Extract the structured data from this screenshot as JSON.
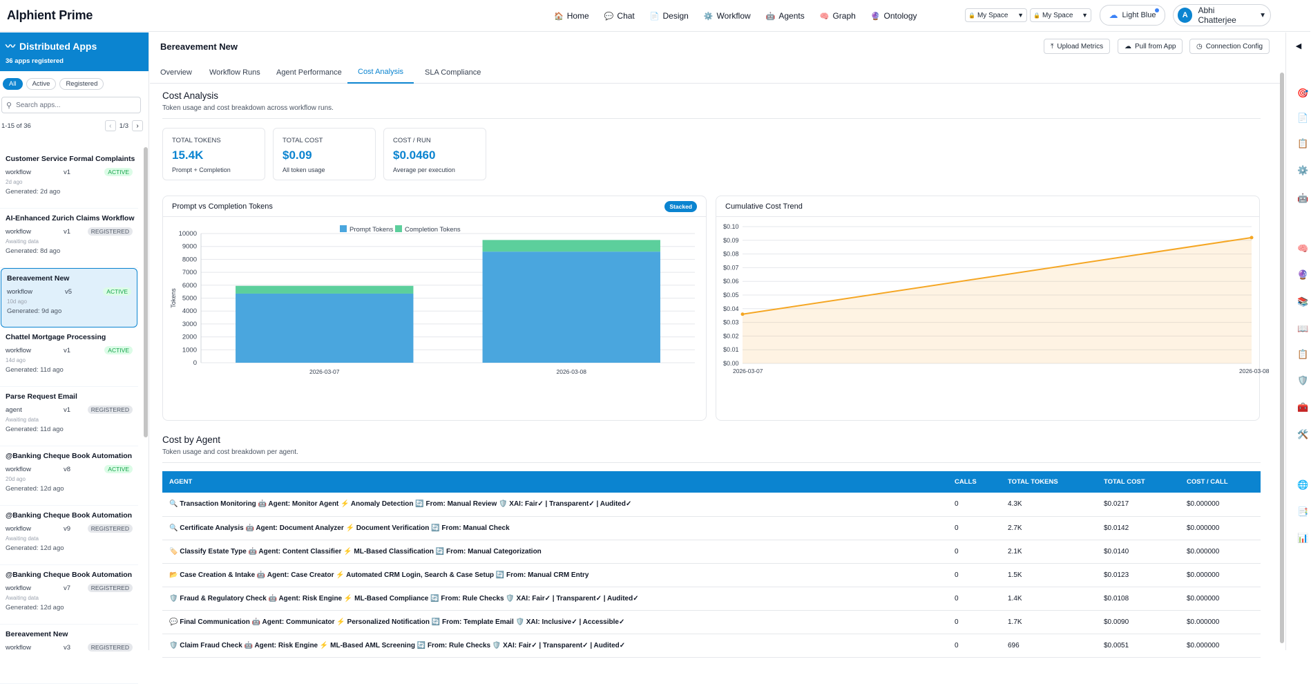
{
  "app": {
    "title": "Alphient Prime"
  },
  "nav": [
    {
      "icon": "🏠",
      "label": "Home"
    },
    {
      "icon": "💬",
      "label": "Chat"
    },
    {
      "icon": "📄",
      "label": "Design"
    },
    {
      "icon": "⚙️",
      "label": "Workflow"
    },
    {
      "icon": "🤖",
      "label": "Agents"
    },
    {
      "icon": "🧠",
      "label": "Graph"
    },
    {
      "icon": "🔮",
      "label": "Ontology"
    }
  ],
  "space_selects": [
    {
      "icon": "🔒",
      "label": "My Space"
    },
    {
      "icon": "🔒",
      "label": "My Space"
    }
  ],
  "theme": {
    "label": "Light Blue"
  },
  "user": {
    "initial": "A",
    "name": "Abhi Chatterjee"
  },
  "sidebar": {
    "title": "Distributed Apps",
    "subtitle": "36 apps registered",
    "filters": [
      "All",
      "Active",
      "Registered"
    ],
    "search_placeholder": "Search apps...",
    "range": "1-15 of 36",
    "page": "1/3",
    "apps": [
      {
        "name": "Customer Service Formal Complaints",
        "type": "workflow",
        "version": "v1",
        "status": "ACTIVE",
        "meta": "2d ago",
        "generated": "Generated: 2d ago"
      },
      {
        "name": "AI-Enhanced Zurich Claims Workflow",
        "type": "workflow",
        "version": "v1",
        "status": "REGISTERED",
        "meta": "Awaiting data",
        "generated": "Generated: 8d ago"
      },
      {
        "name": "Bereavement New",
        "type": "workflow",
        "version": "v5",
        "status": "ACTIVE",
        "meta": "10d ago",
        "generated": "Generated: 9d ago",
        "selected": true
      },
      {
        "name": "Chattel Mortgage Processing",
        "type": "workflow",
        "version": "v1",
        "status": "ACTIVE",
        "meta": "14d ago",
        "generated": "Generated: 11d ago"
      },
      {
        "name": "Parse Request Email",
        "type": "agent",
        "version": "v1",
        "status": "REGISTERED",
        "meta": "Awaiting data",
        "generated": "Generated: 11d ago"
      },
      {
        "name": "@Banking Cheque Book Automation",
        "type": "workflow",
        "version": "v8",
        "status": "ACTIVE",
        "meta": "20d ago",
        "generated": "Generated: 12d ago"
      },
      {
        "name": "@Banking Cheque Book Automation",
        "type": "workflow",
        "version": "v9",
        "status": "REGISTERED",
        "meta": "Awaiting data",
        "generated": "Generated: 12d ago"
      },
      {
        "name": "@Banking Cheque Book Automation",
        "type": "workflow",
        "version": "v7",
        "status": "REGISTERED",
        "meta": "Awaiting data",
        "generated": "Generated: 12d ago"
      },
      {
        "name": "Bereavement New",
        "type": "workflow",
        "version": "v3",
        "status": "REGISTERED",
        "meta": "",
        "generated": ""
      }
    ]
  },
  "main": {
    "title": "Bereavement New",
    "actions": [
      {
        "icon": "⤒",
        "label": "Upload Metrics"
      },
      {
        "icon": "☁",
        "label": "Pull from App"
      },
      {
        "icon": "◷",
        "label": "Connection Config"
      }
    ],
    "tabs": [
      "Overview",
      "Workflow Runs",
      "Agent Performance",
      "Cost Analysis",
      "SLA Compliance"
    ],
    "active_tab": "Cost Analysis",
    "cost_title": "Cost Analysis",
    "cost_sub": "Token usage and cost breakdown across workflow runs.",
    "cards": [
      {
        "label": "TOTAL TOKENS",
        "value": "15.4K",
        "note": "Prompt + Completion"
      },
      {
        "label": "TOTAL COST",
        "value": "$0.09",
        "note": "All token usage"
      },
      {
        "label": "COST / RUN",
        "value": "$0.0460",
        "note": "Average per execution"
      }
    ],
    "tokens_panel": {
      "title": "Prompt vs Completion Tokens",
      "badge": "Stacked"
    },
    "cost_panel": {
      "title": "Cumulative Cost Trend"
    },
    "agent_title": "Cost by Agent",
    "agent_sub": "Token usage and cost breakdown per agent.",
    "table": {
      "headers": [
        "AGENT",
        "CALLS",
        "TOTAL TOKENS",
        "TOTAL COST",
        "COST / CALL"
      ],
      "rows": [
        {
          "agent": "🔍 Transaction Monitoring 🤖 Agent: Monitor Agent ⚡ Anomaly Detection 🔄 From: Manual Review 🛡️ XAI: Fair✓ | Transparent✓ | Audited✓",
          "calls": "0",
          "tokens": "4.3K",
          "cost": "$0.0217",
          "per": "$0.000000"
        },
        {
          "agent": "🔍 Certificate Analysis 🤖 Agent: Document Analyzer ⚡ Document Verification 🔄 From: Manual Check",
          "calls": "0",
          "tokens": "2.7K",
          "cost": "$0.0142",
          "per": "$0.000000"
        },
        {
          "agent": "🏷️ Classify Estate Type 🤖 Agent: Content Classifier ⚡ ML-Based Classification 🔄 From: Manual Categorization",
          "calls": "0",
          "tokens": "2.1K",
          "cost": "$0.0140",
          "per": "$0.000000"
        },
        {
          "agent": "📂 Case Creation & Intake 🤖 Agent: Case Creator ⚡ Automated CRM Login, Search & Case Setup 🔄 From: Manual CRM Entry",
          "calls": "0",
          "tokens": "1.5K",
          "cost": "$0.0123",
          "per": "$0.000000"
        },
        {
          "agent": "🛡️ Fraud & Regulatory Check 🤖 Agent: Risk Engine ⚡ ML-Based Compliance 🔄 From: Rule Checks 🛡️ XAI: Fair✓ | Transparent✓ | Audited✓",
          "calls": "0",
          "tokens": "1.4K",
          "cost": "$0.0108",
          "per": "$0.000000"
        },
        {
          "agent": "💬 Final Communication 🤖 Agent: Communicator ⚡ Personalized Notification 🔄 From: Template Email 🛡️ XAI: Inclusive✓ | Accessible✓",
          "calls": "0",
          "tokens": "1.7K",
          "cost": "$0.0090",
          "per": "$0.000000"
        },
        {
          "agent": "🛡️ Claim Fraud Check 🤖 Agent: Risk Engine ⚡ ML-Based AML Screening 🔄 From: Rule Checks 🛡️ XAI: Fair✓ | Transparent✓ | Audited✓",
          "calls": "0",
          "tokens": "696",
          "cost": "$0.0051",
          "per": "$0.000000"
        }
      ]
    }
  },
  "rail": {
    "toggle": "◀",
    "icons": [
      "🎯",
      "📄",
      "📋",
      "⚙️",
      "🤖",
      "🧠",
      "🔮",
      "📚",
      "📖",
      "📋",
      "🛡️",
      "🧰",
      "🛠️",
      "🌐",
      "📑",
      "📊"
    ]
  },
  "chart_data": [
    {
      "type": "bar",
      "stacked": true,
      "title": "Prompt vs Completion Tokens",
      "categories": [
        "2026-03-07",
        "2026-03-08"
      ],
      "series": [
        {
          "name": "Prompt Tokens",
          "values": [
            5350,
            8600
          ],
          "color": "#4aa6de"
        },
        {
          "name": "Completion Tokens",
          "values": [
            600,
            900
          ],
          "color": "#5ccf9c"
        }
      ],
      "ylabel": "Tokens",
      "ylim": [
        0,
        10000
      ],
      "yticks": [
        0,
        1000,
        2000,
        3000,
        4000,
        5000,
        6000,
        7000,
        8000,
        9000,
        10000
      ],
      "legend": "top-center",
      "grid": true
    },
    {
      "type": "area",
      "title": "Cumulative Cost Trend",
      "x": [
        "2026-03-07",
        "2026-03-08"
      ],
      "series": [
        {
          "values": [
            0.036,
            0.092
          ],
          "color": "#f5a623"
        }
      ],
      "ylim": [
        0,
        0.1
      ],
      "yticks": [
        0.0,
        0.01,
        0.02,
        0.03,
        0.04,
        0.05,
        0.06,
        0.07,
        0.08,
        0.09,
        0.1
      ],
      "grid": true
    }
  ]
}
